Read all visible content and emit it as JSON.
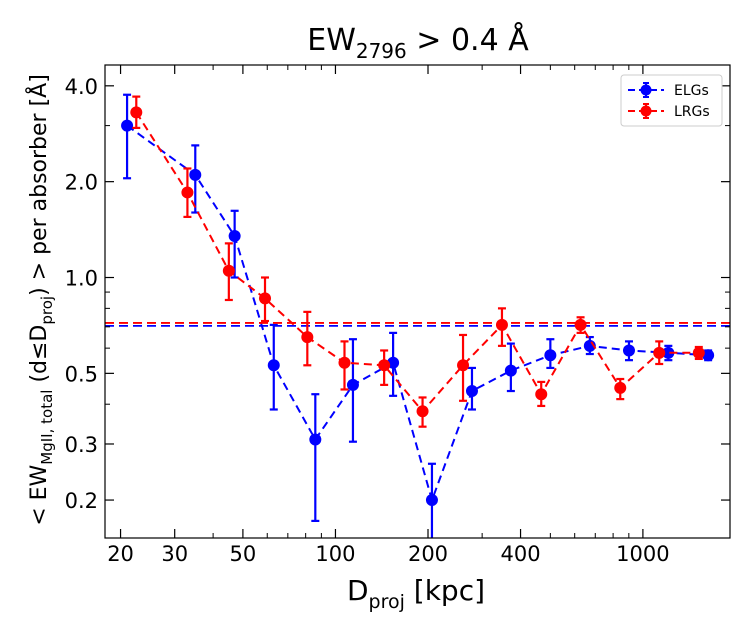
{
  "chart_data": {
    "type": "scatter",
    "title": "EW_2796 > 0.4 Å",
    "title_parts": {
      "base": "EW",
      "sub": "2796",
      "rest": " > 0.4 Å"
    },
    "xlabel": "D_proj [kpc]",
    "xlabel_parts": {
      "base": "D",
      "sub": "proj",
      "rest": " [kpc]"
    },
    "ylabel": "< EW_MgII, total (d≤D_proj) > per absorber [Å]",
    "ylabel_parts": {
      "a": "< EW",
      "sub1": "MgII, total",
      "b": " (d≤D",
      "sub2": "proj",
      "c": ") >  per absorber [Å]"
    },
    "xscale": "log",
    "yscale": "log",
    "xlim": [
      17.8,
      1920
    ],
    "ylim": [
      0.152,
      4.65
    ],
    "xticks": [
      20,
      30,
      50,
      100,
      200,
      400,
      1000
    ],
    "xtick_labels": [
      "20",
      "30",
      "50",
      "100",
      "200",
      "400",
      "1000"
    ],
    "yticks": [
      0.2,
      0.3,
      0.5,
      1.0,
      2.0,
      4.0
    ],
    "ytick_labels": [
      "0.2",
      "0.3",
      "0.5",
      "1.0",
      "2.0",
      "4.0"
    ],
    "legend_position": "top-right",
    "series": [
      {
        "name": "ELGs",
        "color": "#0000ff",
        "x": [
          21,
          35,
          47,
          63,
          86,
          114,
          154,
          206,
          278,
          372,
          500,
          672,
          901,
          1210,
          1630
        ],
        "y": [
          3.0,
          2.1,
          1.35,
          0.53,
          0.31,
          0.46,
          0.54,
          0.2,
          0.44,
          0.51,
          0.57,
          0.61,
          0.59,
          0.58,
          0.57
        ],
        "yerr_low": [
          2.05,
          1.6,
          1.0,
          0.385,
          0.172,
          0.305,
          0.425,
          0.145,
          0.385,
          0.44,
          0.52,
          0.575,
          0.55,
          0.55,
          0.55
        ],
        "yerr_high": [
          3.75,
          2.6,
          1.62,
          0.71,
          0.43,
          0.64,
          0.67,
          0.26,
          0.52,
          0.62,
          0.64,
          0.65,
          0.63,
          0.61,
          0.59
        ],
        "mean_line": 0.705
      },
      {
        "name": "LRGs",
        "color": "#ff0000",
        "x": [
          22.5,
          33,
          45,
          59,
          81,
          107,
          144,
          192,
          260,
          348,
          467,
          627,
          844,
          1130,
          1520
        ],
        "y": [
          3.3,
          1.85,
          1.05,
          0.86,
          0.65,
          0.54,
          0.53,
          0.38,
          0.53,
          0.71,
          0.43,
          0.71,
          0.45,
          0.58,
          0.58
        ],
        "yerr_low": [
          2.95,
          1.55,
          0.85,
          0.73,
          0.53,
          0.445,
          0.46,
          0.34,
          0.41,
          0.61,
          0.395,
          0.67,
          0.415,
          0.535,
          0.555
        ],
        "yerr_high": [
          3.7,
          2.2,
          1.28,
          1.0,
          0.78,
          0.63,
          0.59,
          0.42,
          0.66,
          0.8,
          0.47,
          0.75,
          0.48,
          0.63,
          0.605
        ],
        "mean_line": 0.72
      }
    ]
  }
}
